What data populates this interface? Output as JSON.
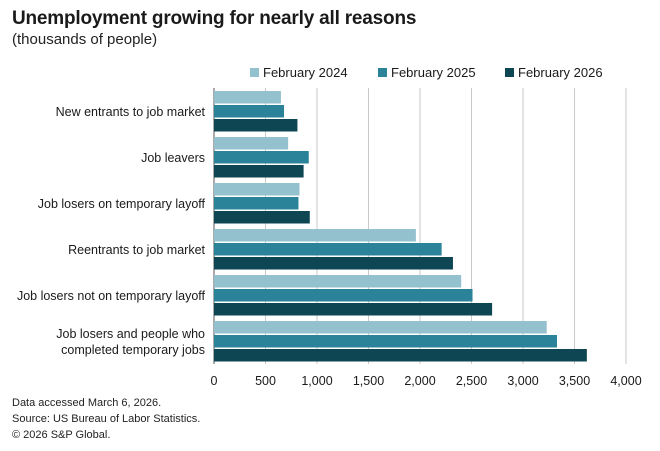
{
  "header": {
    "title": "Unemployment growing for nearly all reasons",
    "subtitle": "(thousands of people)"
  },
  "legend": [
    {
      "label": "February 2024",
      "color": "#93c1ce"
    },
    {
      "label": "February 2025",
      "color": "#2a8399"
    },
    {
      "label": "February 2026",
      "color": "#0e4653"
    }
  ],
  "chart_data": {
    "type": "bar",
    "orientation": "horizontal",
    "title": "Unemployment growing for nearly all reasons",
    "subtitle": "(thousands of people)",
    "categories": [
      [
        "New entrants to job market"
      ],
      [
        "Job leavers"
      ],
      [
        "Job losers on temporary layoff"
      ],
      [
        "Reentrants to job market"
      ],
      [
        "Job losers not on temporary layoff"
      ],
      [
        "Job losers and people who",
        "completed temporary jobs"
      ]
    ],
    "series": [
      {
        "name": "February 2024",
        "color": "#93c1ce",
        "values": [
          650,
          720,
          830,
          1960,
          2400,
          3230
        ]
      },
      {
        "name": "February 2025",
        "color": "#2a8399",
        "values": [
          680,
          920,
          820,
          2210,
          2510,
          3330
        ]
      },
      {
        "name": "February 2026",
        "color": "#0e4653",
        "values": [
          810,
          870,
          930,
          2320,
          2700,
          3620
        ]
      }
    ],
    "xlim": [
      0,
      4000
    ],
    "xticks": [
      0,
      500,
      1000,
      1500,
      2000,
      2500,
      3000,
      3500,
      4000
    ],
    "xtick_labels": [
      "0",
      "500",
      "1,000",
      "1,500",
      "2,000",
      "2,500",
      "3,000",
      "3,500",
      "4,000"
    ],
    "xlabel": "",
    "ylabel": "",
    "grid": "vertical",
    "legend_position": "top"
  },
  "footer": {
    "lines": [
      "Data accessed March 6, 2026.",
      "Source: US Bureau of Labor Statistics.",
      "© 2026 S&P Global."
    ]
  }
}
